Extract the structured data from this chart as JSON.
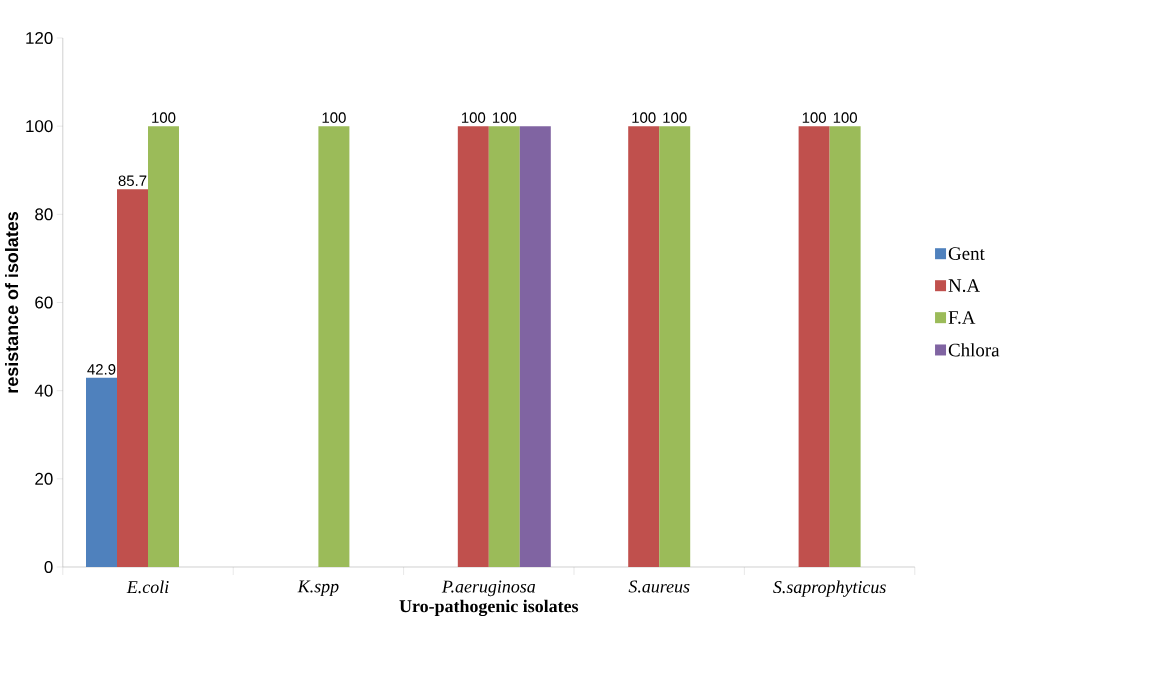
{
  "chart_data": {
    "type": "bar",
    "xlabel": "Uro-pathogenic isolates",
    "ylabel": "resistance of isolates",
    "categories": [
      "E.coli",
      "K.spp",
      "P.aeruginosa",
      "S.aureus",
      "S.saprophyticus"
    ],
    "series": [
      {
        "name": "Gent",
        "color": "#4f81bd",
        "values": [
          42.9,
          0,
          0,
          0,
          0
        ],
        "value_labels": [
          "42.9",
          null,
          null,
          null,
          null
        ]
      },
      {
        "name": "N.A",
        "color": "#c0504d",
        "values": [
          85.7,
          0,
          100,
          100,
          100
        ],
        "value_labels": [
          "85.7",
          null,
          "100",
          "100",
          "100"
        ]
      },
      {
        "name": "F.A",
        "color": "#9bbb59",
        "values": [
          100,
          100,
          100,
          100,
          100
        ],
        "value_labels": [
          "100",
          "100",
          "100",
          "100",
          "100"
        ]
      },
      {
        "name": "Chlora",
        "color": "#8064a2",
        "values": [
          0,
          0,
          100,
          0,
          0
        ],
        "value_labels": [
          null,
          null,
          null,
          null,
          null
        ]
      }
    ],
    "ylim": [
      0,
      120
    ],
    "yticks": [
      0,
      20,
      40,
      60,
      80,
      100,
      120
    ],
    "grid": false,
    "legend": "right"
  }
}
